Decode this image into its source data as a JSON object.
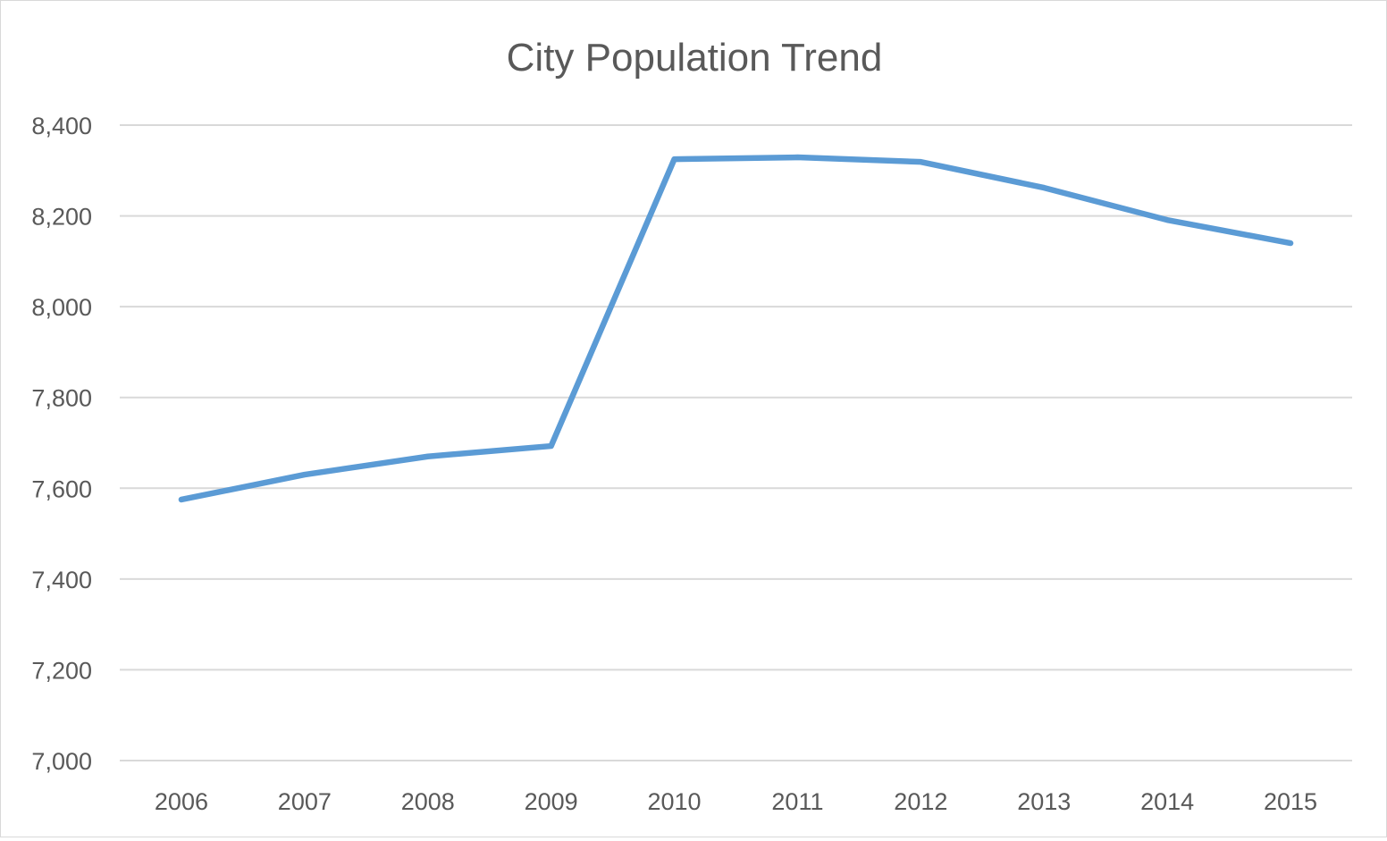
{
  "chart_data": {
    "type": "line",
    "title": "City Population Trend",
    "xlabel": "",
    "ylabel": "",
    "categories": [
      "2006",
      "2007",
      "2008",
      "2009",
      "2010",
      "2011",
      "2012",
      "2013",
      "2014",
      "2015"
    ],
    "series": [
      {
        "values": [
          7575,
          7630,
          7670,
          7693,
          8325,
          8329,
          8319,
          8262,
          8191,
          8140
        ],
        "color": "#5B9BD5"
      }
    ],
    "ylim": [
      7000,
      8400
    ],
    "yticks": [
      7000,
      7200,
      7400,
      7600,
      7800,
      8000,
      8200,
      8400
    ],
    "ytick_labels": [
      "7,000",
      "7,200",
      "7,400",
      "7,600",
      "7,800",
      "8,000",
      "8,200",
      "8,400"
    ],
    "grid": true,
    "grid_color": "#d9d9d9",
    "legend": "none"
  }
}
